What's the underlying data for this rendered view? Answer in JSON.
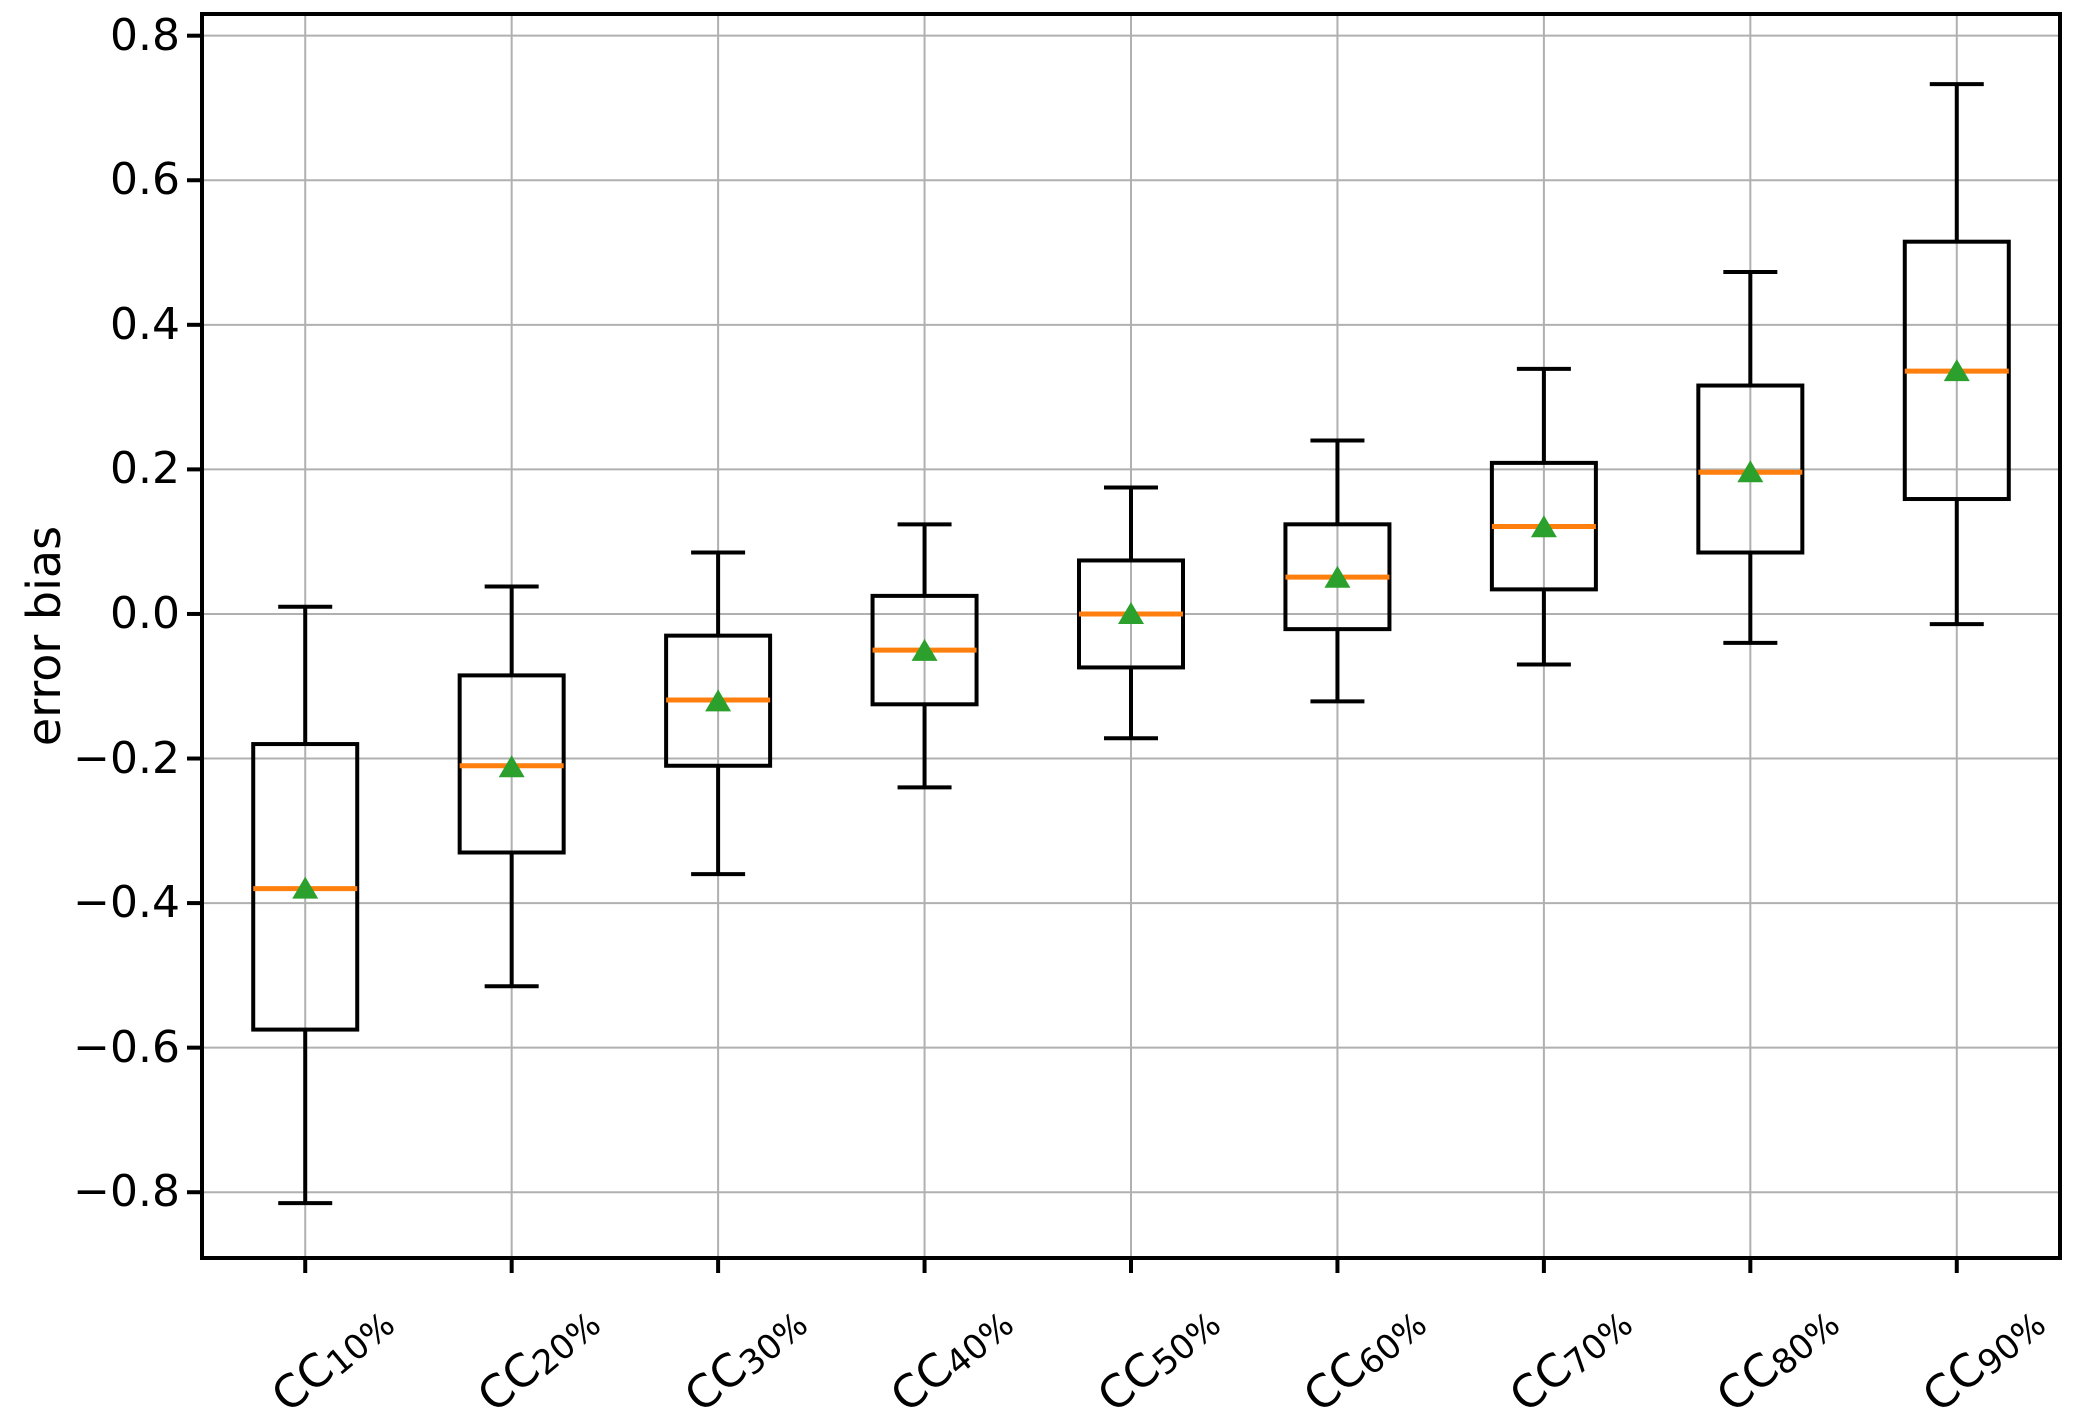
{
  "chart_data": {
    "type": "box",
    "title": "",
    "xlabel": "",
    "ylabel": "error bias",
    "grid": true,
    "ylim": [
      -0.891,
      0.83
    ],
    "y_ticks": [
      {
        "value": 0.8,
        "label": "0.8"
      },
      {
        "value": 0.6,
        "label": "0.6"
      },
      {
        "value": 0.4,
        "label": "0.4"
      },
      {
        "value": 0.2,
        "label": "0.2"
      },
      {
        "value": 0.0,
        "label": "0.0"
      },
      {
        "value": -0.2,
        "label": "−0.2"
      },
      {
        "value": -0.4,
        "label": "−0.4"
      },
      {
        "value": -0.6,
        "label": "−0.6"
      },
      {
        "value": -0.8,
        "label": "−0.8"
      }
    ],
    "categories": [
      {
        "base": "CC",
        "sub": "10%",
        "display": "CC10%"
      },
      {
        "base": "CC",
        "sub": "20%",
        "display": "CC20%"
      },
      {
        "base": "CC",
        "sub": "30%",
        "display": "CC30%"
      },
      {
        "base": "CC",
        "sub": "40%",
        "display": "CC40%"
      },
      {
        "base": "CC",
        "sub": "50%",
        "display": "CC50%"
      },
      {
        "base": "CC",
        "sub": "60%",
        "display": "CC60%"
      },
      {
        "base": "CC",
        "sub": "70%",
        "display": "CC70%"
      },
      {
        "base": "CC",
        "sub": "80%",
        "display": "CC80%"
      },
      {
        "base": "CC",
        "sub": "90%",
        "display": "CC90%"
      }
    ],
    "series": [
      {
        "label": "CC10%",
        "whisker_low": -0.815,
        "q1": -0.575,
        "median": -0.38,
        "q3": -0.18,
        "whisker_high": 0.01,
        "mean": -0.38
      },
      {
        "label": "CC20%",
        "whisker_low": -0.515,
        "q1": -0.33,
        "median": -0.21,
        "q3": -0.085,
        "whisker_high": 0.038,
        "mean": -0.212
      },
      {
        "label": "CC30%",
        "whisker_low": -0.36,
        "q1": -0.21,
        "median": -0.119,
        "q3": -0.03,
        "whisker_high": 0.085,
        "mean": -0.121
      },
      {
        "label": "CC40%",
        "whisker_low": -0.24,
        "q1": -0.125,
        "median": -0.05,
        "q3": 0.025,
        "whisker_high": 0.124,
        "mean": -0.051
      },
      {
        "label": "CC50%",
        "whisker_low": -0.172,
        "q1": -0.074,
        "median": 0.0,
        "q3": 0.074,
        "whisker_high": 0.175,
        "mean": 0.0
      },
      {
        "label": "CC60%",
        "whisker_low": -0.121,
        "q1": -0.021,
        "median": 0.051,
        "q3": 0.124,
        "whisker_high": 0.24,
        "mean": 0.05
      },
      {
        "label": "CC70%",
        "whisker_low": -0.07,
        "q1": 0.034,
        "median": 0.121,
        "q3": 0.209,
        "whisker_high": 0.339,
        "mean": 0.12
      },
      {
        "label": "CC80%",
        "whisker_low": -0.04,
        "q1": 0.085,
        "median": 0.196,
        "q3": 0.316,
        "whisker_high": 0.473,
        "mean": 0.196
      },
      {
        "label": "CC90%",
        "whisker_low": -0.014,
        "q1": 0.159,
        "median": 0.336,
        "q3": 0.515,
        "whisker_high": 0.733,
        "mean": 0.336
      }
    ],
    "colors": {
      "box_line": "#000000",
      "median": "#ff7f0e",
      "mean_marker": "#2ca02c",
      "grid": "#b0b0b0",
      "background": "#ffffff"
    }
  }
}
